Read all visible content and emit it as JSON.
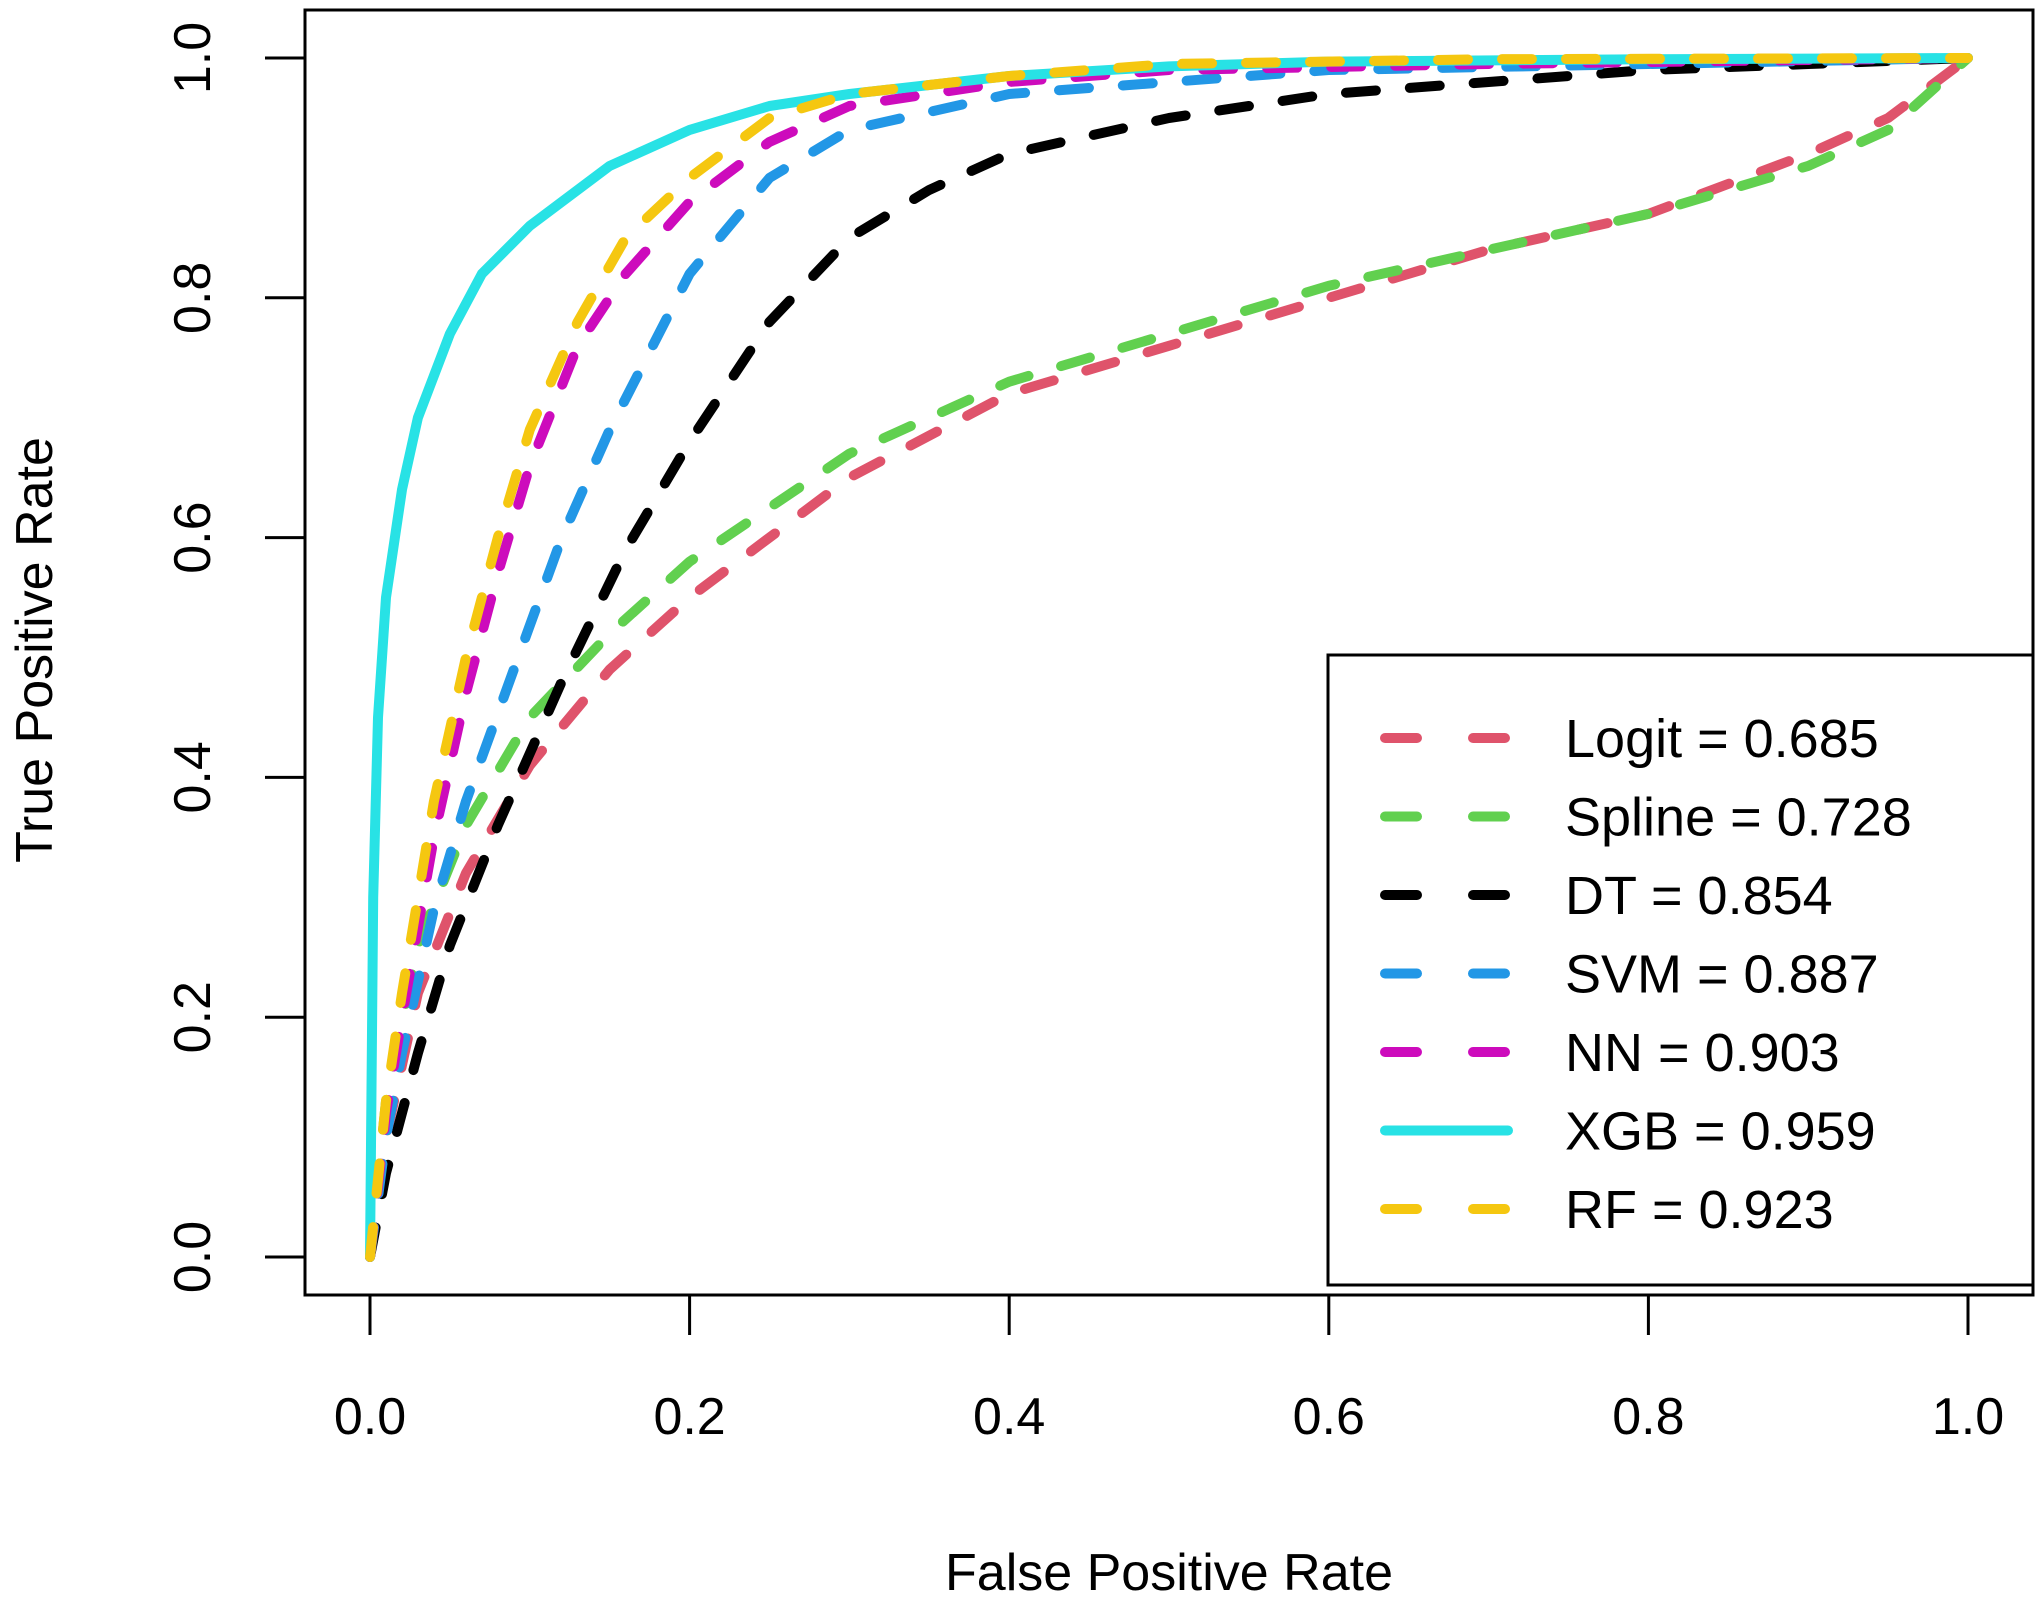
{
  "chart_data": {
    "type": "line",
    "title": "",
    "xlabel": "False Positive Rate",
    "ylabel": "True Positive Rate",
    "xlim": [
      0,
      1
    ],
    "ylim": [
      0,
      1
    ],
    "xticks": [
      "0.0",
      "0.2",
      "0.4",
      "0.6",
      "0.8",
      "1.0"
    ],
    "yticks": [
      "0.0",
      "0.2",
      "0.4",
      "0.6",
      "0.8",
      "1.0"
    ],
    "grid": false,
    "legend_position": "bottom-right",
    "series": [
      {
        "name": "Logit",
        "legend_label": "Logit = 0.685",
        "auc": 0.685,
        "color": "#DF536B",
        "dash": "dashed",
        "x": [
          0,
          0.01,
          0.03,
          0.06,
          0.1,
          0.15,
          0.2,
          0.3,
          0.4,
          0.5,
          0.6,
          0.7,
          0.8,
          0.9,
          0.95,
          1.0
        ],
        "y": [
          0,
          0.1,
          0.22,
          0.32,
          0.41,
          0.49,
          0.55,
          0.65,
          0.72,
          0.76,
          0.8,
          0.84,
          0.87,
          0.92,
          0.95,
          1.0
        ]
      },
      {
        "name": "Spline",
        "legend_label": "Spline = 0.728",
        "auc": 0.728,
        "color": "#61D04F",
        "dash": "dashed",
        "x": [
          0,
          0.01,
          0.03,
          0.06,
          0.1,
          0.15,
          0.2,
          0.3,
          0.4,
          0.5,
          0.6,
          0.7,
          0.8,
          0.9,
          0.95,
          1.0
        ],
        "y": [
          0,
          0.13,
          0.26,
          0.36,
          0.45,
          0.52,
          0.58,
          0.67,
          0.73,
          0.77,
          0.81,
          0.84,
          0.87,
          0.91,
          0.94,
          1.0
        ]
      },
      {
        "name": "DT",
        "legend_label": "DT = 0.854",
        "auc": 0.854,
        "color": "#000000",
        "dash": "dashed",
        "x": [
          0,
          0.01,
          0.03,
          0.05,
          0.08,
          0.12,
          0.16,
          0.2,
          0.25,
          0.3,
          0.35,
          0.4,
          0.5,
          0.6,
          0.7,
          0.8,
          0.9,
          1.0
        ],
        "y": [
          0,
          0.07,
          0.17,
          0.26,
          0.36,
          0.48,
          0.59,
          0.68,
          0.78,
          0.85,
          0.89,
          0.92,
          0.95,
          0.97,
          0.98,
          0.99,
          0.995,
          1.0
        ]
      },
      {
        "name": "SVM",
        "legend_label": "SVM = 0.887",
        "auc": 0.887,
        "color": "#2297E6",
        "dash": "dashed",
        "x": [
          0,
          0.01,
          0.02,
          0.04,
          0.06,
          0.09,
          0.12,
          0.15,
          0.2,
          0.25,
          0.3,
          0.4,
          0.5,
          0.6,
          0.8,
          1.0
        ],
        "y": [
          0,
          0.1,
          0.17,
          0.29,
          0.38,
          0.49,
          0.6,
          0.69,
          0.82,
          0.9,
          0.94,
          0.97,
          0.98,
          0.99,
          0.995,
          1.0
        ]
      },
      {
        "name": "NN",
        "legend_label": "NN = 0.903",
        "auc": 0.903,
        "color": "#CD0BBC",
        "dash": "dashed",
        "x": [
          0,
          0.01,
          0.02,
          0.04,
          0.06,
          0.08,
          0.1,
          0.13,
          0.16,
          0.2,
          0.25,
          0.3,
          0.4,
          0.5,
          0.7,
          1.0
        ],
        "y": [
          0,
          0.12,
          0.2,
          0.35,
          0.47,
          0.57,
          0.66,
          0.76,
          0.82,
          0.88,
          0.93,
          0.96,
          0.98,
          0.99,
          0.995,
          1.0
        ]
      },
      {
        "name": "XGB",
        "legend_label": "XGB = 0.959",
        "auc": 0.959,
        "color": "#28E2E5",
        "dash": "solid",
        "x": [
          0,
          0.002,
          0.005,
          0.01,
          0.02,
          0.03,
          0.05,
          0.07,
          0.1,
          0.15,
          0.2,
          0.25,
          0.3,
          0.4,
          0.5,
          0.6,
          0.8,
          1.0
        ],
        "y": [
          0,
          0.3,
          0.45,
          0.55,
          0.64,
          0.7,
          0.77,
          0.82,
          0.86,
          0.91,
          0.94,
          0.96,
          0.97,
          0.985,
          0.993,
          0.997,
          0.999,
          1.0
        ]
      },
      {
        "name": "RF",
        "legend_label": "RF = 0.923",
        "auc": 0.923,
        "color": "#F5C710",
        "dash": "dashed",
        "x": [
          0,
          0.01,
          0.02,
          0.04,
          0.06,
          0.08,
          0.1,
          0.13,
          0.16,
          0.2,
          0.25,
          0.3,
          0.4,
          0.5,
          0.7,
          1.0
        ],
        "y": [
          0,
          0.13,
          0.22,
          0.38,
          0.5,
          0.6,
          0.69,
          0.78,
          0.85,
          0.9,
          0.95,
          0.97,
          0.985,
          0.995,
          0.999,
          1.0
        ]
      }
    ]
  }
}
